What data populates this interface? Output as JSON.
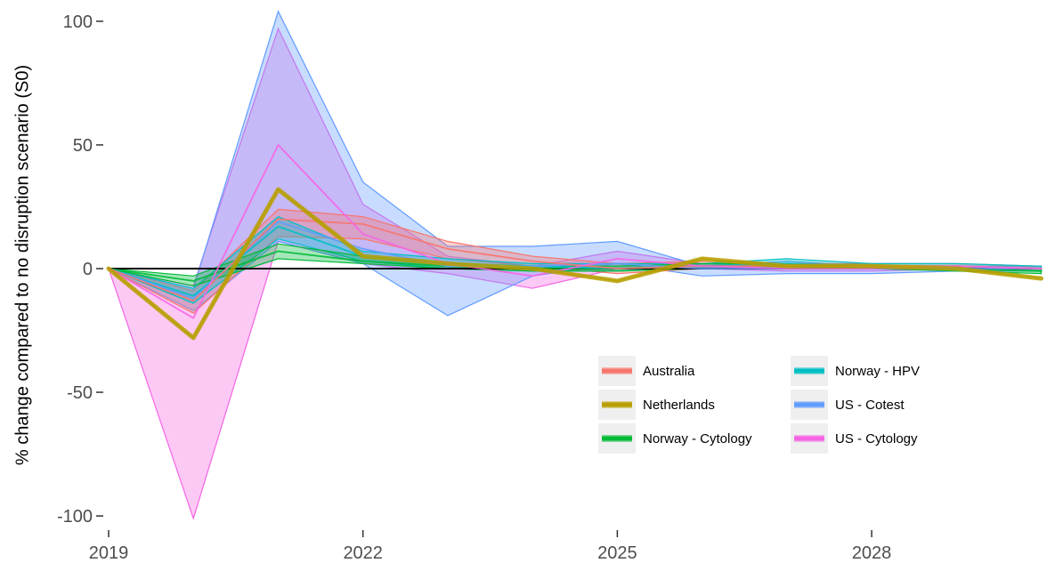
{
  "chart_data": {
    "type": "line",
    "title": "",
    "xlabel": "",
    "ylabel": "% change compared to no disruption scenario (S0)",
    "xlim": [
      2019,
      2029.9
    ],
    "ylim": [
      -105,
      105
    ],
    "x_ticks": [
      2019,
      2022,
      2025,
      2028
    ],
    "y_ticks": [
      -100,
      -50,
      0,
      50,
      100
    ],
    "y_tick_labels": [
      "-100",
      "-50",
      "0",
      "50",
      "100"
    ],
    "grid": false,
    "reference_line": 0,
    "legend_position": "bottom-right",
    "x": [
      2019,
      2020,
      2021,
      2022,
      2023,
      2024,
      2025,
      2026,
      2027,
      2028,
      2029,
      2030
    ],
    "series": [
      {
        "name": "Australia",
        "color": "#F8766D",
        "values": [
          0,
          -13,
          20,
          18,
          8,
          3,
          0,
          1,
          1,
          1,
          1,
          0
        ],
        "lower": [
          0,
          -18,
          13,
          12,
          4,
          1,
          -2,
          0,
          0,
          0,
          0,
          -1
        ],
        "upper": [
          0,
          -9,
          24,
          21,
          11,
          5,
          2,
          3,
          2,
          2,
          2,
          1
        ]
      },
      {
        "name": "Netherlands",
        "color": "#B79F00",
        "values": [
          0,
          -28,
          32,
          5,
          2,
          0,
          -5,
          4,
          1,
          1,
          0,
          -4
        ],
        "lower": [
          0,
          -28,
          32,
          5,
          2,
          0,
          -5,
          4,
          1,
          1,
          0,
          -4
        ],
        "upper": [
          0,
          -28,
          32,
          5,
          2,
          0,
          -5,
          4,
          1,
          1,
          0,
          -4
        ]
      },
      {
        "name": "Norway - Cytology",
        "color": "#00BA38",
        "values": [
          0,
          -5,
          7,
          3,
          1,
          0,
          0,
          1,
          1,
          0,
          0,
          -1
        ],
        "lower": [
          0,
          -7,
          4,
          2,
          0,
          -1,
          -1,
          0,
          0,
          0,
          -1,
          -2
        ],
        "upper": [
          0,
          -3,
          10,
          5,
          2,
          1,
          1,
          2,
          2,
          1,
          1,
          0
        ]
      },
      {
        "name": "Norway - HPV",
        "color": "#00BFC4",
        "values": [
          0,
          -11,
          17,
          5,
          2,
          1,
          0,
          1,
          2,
          1,
          1,
          0
        ],
        "lower": [
          0,
          -14,
          12,
          3,
          0,
          -1,
          -1,
          0,
          1,
          0,
          0,
          -1
        ],
        "upper": [
          0,
          -8,
          21,
          7,
          4,
          2,
          2,
          2,
          4,
          2,
          2,
          1
        ]
      },
      {
        "name": "US - Cotest",
        "color": "#619CFF",
        "values": [
          0,
          -12,
          19,
          8,
          1,
          1,
          2,
          0,
          0,
          0,
          0,
          0
        ],
        "lower": [
          0,
          -17,
          11,
          2,
          -19,
          -3,
          2,
          -3,
          -2,
          -2,
          -1,
          -1
        ],
        "upper": [
          0,
          -8,
          104,
          35,
          9,
          9,
          11,
          1,
          3,
          1,
          1,
          1
        ]
      },
      {
        "name": "US - Cytology",
        "color": "#F564E3",
        "values": [
          0,
          -20,
          50,
          14,
          2,
          -3,
          4,
          1,
          0,
          0,
          1,
          0
        ],
        "lower": [
          0,
          -101,
          11,
          2,
          -2,
          -8,
          0,
          0,
          -1,
          -1,
          0,
          -1
        ],
        "upper": [
          0,
          -7,
          97,
          26,
          5,
          1,
          7,
          2,
          1,
          1,
          1,
          1
        ]
      }
    ]
  }
}
